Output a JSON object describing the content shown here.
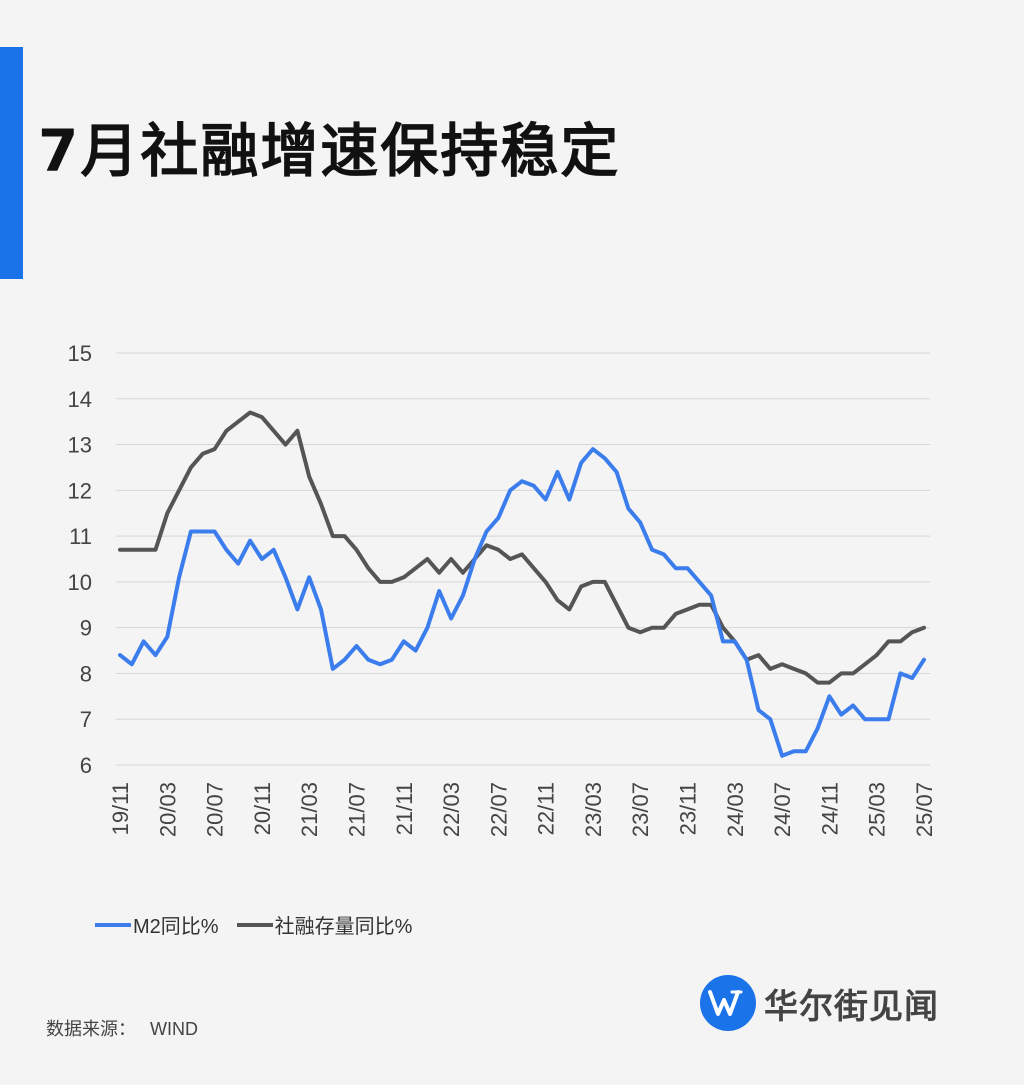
{
  "title": "7月社融增速保持稳定",
  "source": {
    "label": "数据来源：",
    "value": "WIND"
  },
  "logo": {
    "text": "华尔街见闻",
    "icon": "wallstreetcn-w-icon"
  },
  "colors": {
    "accent": "#1a73e8",
    "m2": "#3b7ded",
    "tsf": "#555555"
  },
  "chart_data": {
    "type": "line",
    "title": "",
    "xlabel": "",
    "ylabel": "",
    "ylim": [
      6,
      15
    ],
    "yticks": [
      6,
      7,
      8,
      9,
      10,
      11,
      12,
      13,
      14,
      15
    ],
    "grid": true,
    "legend_position": "bottom-left",
    "x_tick_labels": [
      "19/11",
      "20/03",
      "20/07",
      "20/11",
      "21/03",
      "21/07",
      "21/11",
      "22/03",
      "22/07",
      "22/11",
      "23/03",
      "23/07",
      "23/11",
      "24/03",
      "24/07",
      "24/11",
      "25/03",
      "25/07"
    ],
    "x": [
      "19/11",
      "19/12",
      "20/01",
      "20/02",
      "20/03",
      "20/04",
      "20/05",
      "20/06",
      "20/07",
      "20/08",
      "20/09",
      "20/10",
      "20/11",
      "20/12",
      "21/01",
      "21/02",
      "21/03",
      "21/04",
      "21/05",
      "21/06",
      "21/07",
      "21/08",
      "21/09",
      "21/10",
      "21/11",
      "21/12",
      "22/01",
      "22/02",
      "22/03",
      "22/04",
      "22/05",
      "22/06",
      "22/07",
      "22/08",
      "22/09",
      "22/10",
      "22/11",
      "22/12",
      "23/01",
      "23/02",
      "23/03",
      "23/04",
      "23/05",
      "23/06",
      "23/07",
      "23/08",
      "23/09",
      "23/10",
      "23/11",
      "23/12",
      "24/01",
      "24/02",
      "24/03",
      "24/04",
      "24/05",
      "24/06",
      "24/07",
      "24/08",
      "24/09",
      "24/10",
      "24/11",
      "24/12",
      "25/01",
      "25/02",
      "25/03",
      "25/04",
      "25/05",
      "25/06",
      "25/07"
    ],
    "series": [
      {
        "name": "M2同比%",
        "color": "#3b7ded",
        "values": [
          8.4,
          8.2,
          8.7,
          8.4,
          8.8,
          10.1,
          11.1,
          11.1,
          11.1,
          10.7,
          10.4,
          10.9,
          10.5,
          10.7,
          10.1,
          9.4,
          10.1,
          9.4,
          8.1,
          8.3,
          8.6,
          8.3,
          8.2,
          8.3,
          8.7,
          8.5,
          9.0,
          9.8,
          9.2,
          9.7,
          10.5,
          11.1,
          11.4,
          12.0,
          12.2,
          12.1,
          11.8,
          12.4,
          11.8,
          12.6,
          12.9,
          12.7,
          12.4,
          11.6,
          11.3,
          10.7,
          10.6,
          10.3,
          10.3,
          10.0,
          9.7,
          8.7,
          8.7,
          8.3,
          7.2,
          7.0,
          6.2,
          6.3,
          6.3,
          6.8,
          7.5,
          7.1,
          7.3,
          7.0,
          7.0,
          7.0,
          8.0,
          7.9,
          8.3
        ]
      },
      {
        "name": "社融存量同比%",
        "color": "#555555",
        "values": [
          10.7,
          10.7,
          10.7,
          10.7,
          11.5,
          12.0,
          12.5,
          12.8,
          12.9,
          13.3,
          13.5,
          13.7,
          13.6,
          13.3,
          13.0,
          13.3,
          12.3,
          11.7,
          11.0,
          11.0,
          10.7,
          10.3,
          10.0,
          10.0,
          10.1,
          10.3,
          10.5,
          10.2,
          10.5,
          10.2,
          10.5,
          10.8,
          10.7,
          10.5,
          10.6,
          10.3,
          10.0,
          9.6,
          9.4,
          9.9,
          10.0,
          10.0,
          9.5,
          9.0,
          8.9,
          9.0,
          9.0,
          9.3,
          9.4,
          9.5,
          9.5,
          9.0,
          8.7,
          8.3,
          8.4,
          8.1,
          8.2,
          8.1,
          8.0,
          7.8,
          7.8,
          8.0,
          8.0,
          8.2,
          8.4,
          8.7,
          8.7,
          8.9,
          9.0
        ]
      }
    ]
  }
}
